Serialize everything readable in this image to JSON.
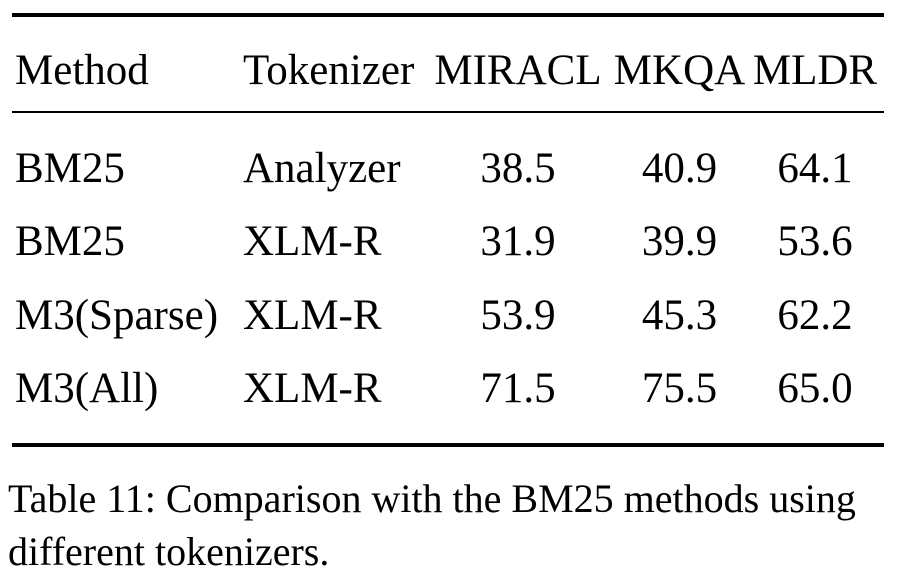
{
  "page": {
    "background_color": "#ffffff",
    "text_color": "#000000",
    "rule_color": "#000000"
  },
  "table": {
    "columns": [
      "Method",
      "Tokenizer",
      "MIRACL",
      "MKQA",
      "MLDR"
    ],
    "rows": [
      [
        "BM25",
        "Analyzer",
        "38.5",
        "40.9",
        "64.1"
      ],
      [
        "BM25",
        "XLM-R",
        "31.9",
        "39.9",
        "53.6"
      ],
      [
        "M3(Sparse)",
        "XLM-R",
        "53.9",
        "45.3",
        "62.2"
      ],
      [
        "M3(All)",
        "XLM-R",
        "71.5",
        "75.5",
        "65.0"
      ]
    ]
  },
  "caption": {
    "text": "Table 11: Comparison with the BM25 methods using different tokenizers.",
    "line1": "Table 11: Comparison with the BM25 methods using",
    "line2": "different tokenizers."
  },
  "chart_data": {
    "type": "table",
    "title": "Table 11: Comparison with the BM25 methods using different tokenizers.",
    "columns": [
      "Method",
      "Tokenizer",
      "MIRACL",
      "MKQA",
      "MLDR"
    ],
    "rows": [
      {
        "method": "BM25",
        "tokenizer": "Analyzer",
        "MIRACL": 38.5,
        "MKQA": 40.9,
        "MLDR": 64.1
      },
      {
        "method": "BM25",
        "tokenizer": "XLM-R",
        "MIRACL": 31.9,
        "MKQA": 39.9,
        "MLDR": 53.6
      },
      {
        "method": "M3(Sparse)",
        "tokenizer": "XLM-R",
        "MIRACL": 53.9,
        "MKQA": 45.3,
        "MLDR": 62.2
      },
      {
        "method": "M3(All)",
        "tokenizer": "XLM-R",
        "MIRACL": 71.5,
        "MKQA": 75.5,
        "MLDR": 65.0
      }
    ]
  }
}
